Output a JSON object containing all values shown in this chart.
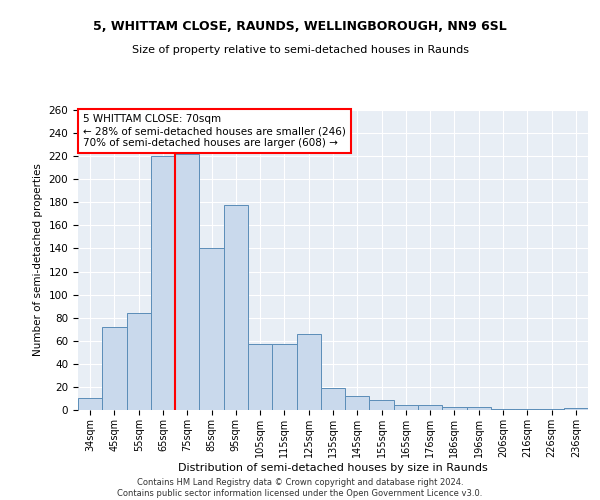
{
  "title1": "5, WHITTAM CLOSE, RAUNDS, WELLINGBOROUGH, NN9 6SL",
  "title2": "Size of property relative to semi-detached houses in Raunds",
  "xlabel": "Distribution of semi-detached houses by size in Raunds",
  "ylabel": "Number of semi-detached properties",
  "footnote1": "Contains HM Land Registry data © Crown copyright and database right 2024.",
  "footnote2": "Contains public sector information licensed under the Open Government Licence v3.0.",
  "categories": [
    "34sqm",
    "45sqm",
    "55sqm",
    "65sqm",
    "75sqm",
    "85sqm",
    "95sqm",
    "105sqm",
    "115sqm",
    "125sqm",
    "135sqm",
    "145sqm",
    "155sqm",
    "165sqm",
    "176sqm",
    "186sqm",
    "196sqm",
    "206sqm",
    "216sqm",
    "226sqm",
    "236sqm"
  ],
  "values": [
    10,
    72,
    84,
    220,
    222,
    140,
    178,
    57,
    57,
    66,
    19,
    12,
    9,
    4,
    4,
    3,
    3,
    1,
    1,
    1,
    2
  ],
  "bar_color": "#c9d9ec",
  "bar_edge_color": "#5b8db8",
  "highlight_line_color": "red",
  "annotation_title": "5 WHITTAM CLOSE: 70sqm",
  "annotation_line1": "← 28% of semi-detached houses are smaller (246)",
  "annotation_line2": "70% of semi-detached houses are larger (608) →",
  "annotation_box_color": "white",
  "annotation_box_edge": "red",
  "ylim": [
    0,
    260
  ],
  "yticks": [
    0,
    20,
    40,
    60,
    80,
    100,
    120,
    140,
    160,
    180,
    200,
    220,
    240,
    260
  ],
  "bg_color": "#e8eef5",
  "fig_width": 6.0,
  "fig_height": 5.0,
  "dpi": 100
}
